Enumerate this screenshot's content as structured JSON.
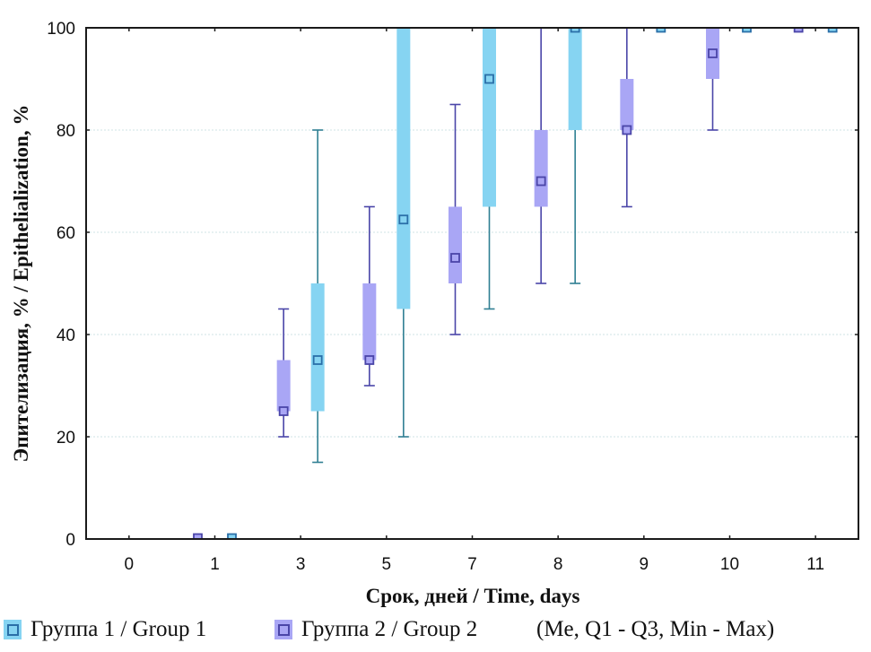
{
  "chart_data": {
    "type": "boxplot",
    "title": "",
    "xlabel": "Срок, дней / Time, days",
    "ylabel": "Эпителизация, % / Epithelialization, %",
    "ylim": [
      0,
      100
    ],
    "yticks": [
      "0",
      "20",
      "40",
      "60",
      "80",
      "100"
    ],
    "ytick_values": [
      0,
      20,
      40,
      60,
      80,
      100
    ],
    "grid": "horizontal dotted",
    "categories": [
      "0",
      "1",
      "3",
      "5",
      "7",
      "8",
      "9",
      "10",
      "11"
    ],
    "series": [
      {
        "name": "Группа 2 / Group 2",
        "key": "group2",
        "color_fill": "#a9a6f5",
        "color_line": "#4a45a8",
        "position": "left",
        "values": [
          null,
          {
            "min": 0,
            "q1": 0,
            "median": 0,
            "q3": 0,
            "max": 0
          },
          {
            "min": 20,
            "q1": 25,
            "median": 25,
            "q3": 35,
            "max": 45
          },
          {
            "min": 30,
            "q1": 35,
            "median": 35,
            "q3": 50,
            "max": 65
          },
          {
            "min": 40,
            "q1": 50,
            "median": 55,
            "q3": 65,
            "max": 85
          },
          {
            "min": 50,
            "q1": 65,
            "median": 70,
            "q3": 80,
            "max": 100
          },
          {
            "min": 65,
            "q1": 80,
            "median": 80,
            "q3": 90,
            "max": 100
          },
          {
            "min": 80,
            "q1": 90,
            "median": 95,
            "q3": 100,
            "max": 100
          },
          {
            "min": 100,
            "q1": 100,
            "median": 100,
            "q3": 100,
            "max": 100
          }
        ]
      },
      {
        "name": "Группа 1 / Group 1",
        "key": "group1",
        "color_fill": "#86d4f2",
        "color_line": "#2a6fa8",
        "whisker_color": "#2f7f93",
        "position": "right",
        "values": [
          null,
          {
            "min": 0,
            "q1": 0,
            "median": 0,
            "q3": 0,
            "max": 0
          },
          {
            "min": 15,
            "q1": 25,
            "median": 35,
            "q3": 50,
            "max": 80
          },
          {
            "min": 20,
            "q1": 45,
            "median": 62.5,
            "q3": 100,
            "max": 100
          },
          {
            "min": 45,
            "q1": 65,
            "median": 90,
            "q3": 100,
            "max": 100
          },
          {
            "min": 50,
            "q1": 80,
            "median": 100,
            "q3": 100,
            "max": 100
          },
          {
            "min": 100,
            "q1": 100,
            "median": 100,
            "q3": 100,
            "max": 100
          },
          {
            "min": 100,
            "q1": 100,
            "median": 100,
            "q3": 100,
            "max": 100
          },
          {
            "min": 100,
            "q1": 100,
            "median": 100,
            "q3": 100,
            "max": 100
          }
        ]
      }
    ],
    "legend": {
      "placement": "bottom",
      "items": [
        {
          "label": "Группа 1 / Group 1",
          "fill": "#86d4f2",
          "line": "#2a6fa8"
        },
        {
          "label": "Группа 2 / Group 2",
          "fill": "#a9a6f5",
          "line": "#4a45a8"
        }
      ],
      "note": "(Me, Q1 - Q3, Min - Max)"
    }
  }
}
